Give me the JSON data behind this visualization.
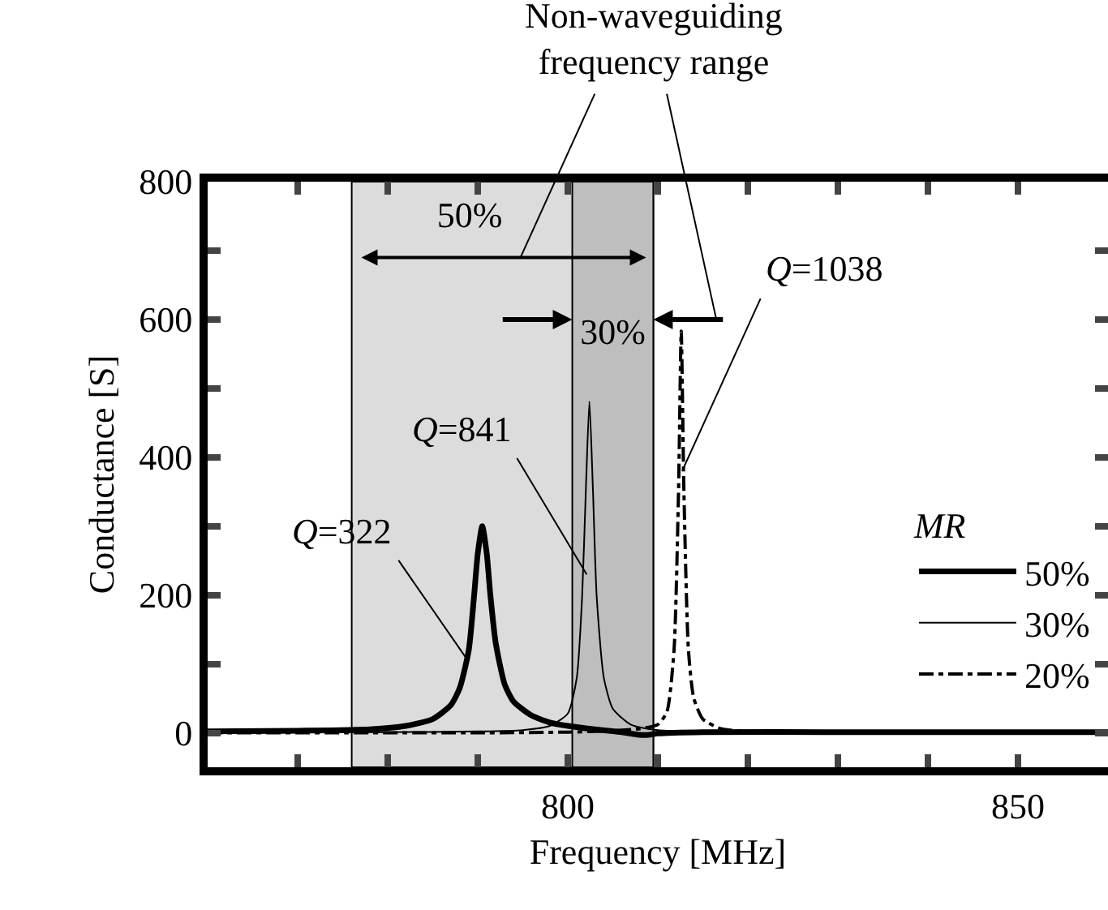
{
  "chart_data": {
    "type": "line",
    "title": "Non-waveguiding\nfrequency range",
    "xlabel": "Frequency [MHz]",
    "ylabel": "Conductance [S]",
    "legend_title": "MR",
    "legend": "bottom right",
    "grid": false,
    "marker": "none",
    "xlim": [
      760,
      860
    ],
    "xticks": [
      {
        "value": 770,
        "label": null
      },
      {
        "value": 780,
        "label": null
      },
      {
        "value": 790,
        "label": null
      },
      800,
      {
        "value": 810,
        "label": null
      },
      {
        "value": 820,
        "label": null
      },
      {
        "value": 830,
        "label": null
      },
      {
        "value": 840,
        "label": null
      },
      850
    ],
    "ylim": [
      -50,
      800
    ],
    "yticks": [
      0,
      {
        "value": 100,
        "label": null
      },
      200,
      {
        "value": 300,
        "label": null
      },
      400,
      {
        "value": 500,
        "label": null
      },
      600,
      {
        "value": 700,
        "label": null
      },
      800
    ],
    "bands": [
      {
        "axis": "x",
        "from": 776,
        "to": 809.5,
        "label": "50%",
        "color": "#dcdcdc"
      },
      {
        "axis": "x",
        "from": 800.5,
        "to": 809.5,
        "label": "30%",
        "color": "#bebebe"
      }
    ],
    "series": [
      {
        "name": "50%",
        "color": "#000000",
        "line_style": "solid",
        "x": [
          760,
          770,
          778,
          782,
          785,
          787,
          788,
          789,
          789.6,
          790,
          790.5,
          791,
          791.4,
          792,
          793,
          794,
          796,
          798,
          800,
          803,
          806,
          808,
          809,
          810,
          815,
          830,
          860
        ],
        "values": [
          2,
          3,
          5,
          10,
          20,
          40,
          65,
          120,
          200,
          260,
          300,
          260,
          200,
          130,
          70,
          45,
          25,
          15,
          10,
          5,
          1,
          -3,
          -3,
          -1,
          1,
          1,
          1
        ]
      },
      {
        "name": "30%",
        "color": "#000000",
        "line_style": "solid",
        "x": [
          760,
          780,
          790,
          795,
          798,
          800,
          801,
          801.6,
          802,
          802.4,
          802.8,
          803.2,
          804,
          805,
          807,
          810,
          820,
          860
        ],
        "values": [
          0,
          1,
          2,
          4,
          10,
          28,
          80,
          200,
          350,
          481,
          350,
          200,
          80,
          35,
          12,
          4,
          1,
          1
        ]
      },
      {
        "name": "20%",
        "color": "#000000",
        "line_style": "dashdot",
        "x": [
          760,
          790,
          800,
          805,
          808,
          810,
          811,
          811.8,
          812.3,
          812.6,
          812.9,
          813.4,
          814,
          815,
          817,
          820,
          830,
          860
        ],
        "values": [
          0,
          0,
          1,
          3,
          6,
          12,
          30,
          120,
          350,
          583,
          350,
          120,
          50,
          20,
          6,
          2,
          1,
          1
        ]
      }
    ],
    "annotations": [
      {
        "text": "Q=322",
        "x": 788.9,
        "y": 105
      },
      {
        "text": "Q=841",
        "x": 802.1,
        "y": 230
      },
      {
        "text": "Q=1038",
        "x": 812.7,
        "y": 380
      }
    ]
  }
}
